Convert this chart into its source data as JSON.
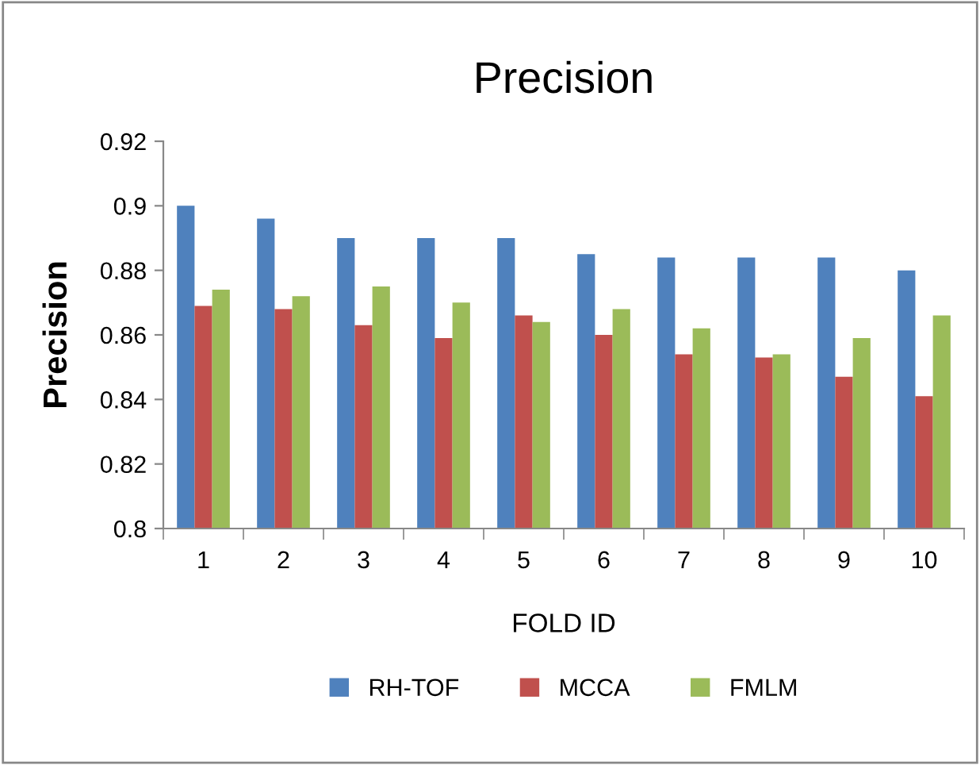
{
  "chart_data": {
    "type": "bar",
    "title": "Precision",
    "xlabel": "FOLD ID",
    "ylabel": "Precision",
    "categories": [
      "1",
      "2",
      "3",
      "4",
      "5",
      "6",
      "7",
      "8",
      "9",
      "10"
    ],
    "series": [
      {
        "name": "RH-TOF",
        "color": "#4f81bd",
        "values": [
          0.9,
          0.896,
          0.89,
          0.89,
          0.89,
          0.885,
          0.884,
          0.884,
          0.884,
          0.88
        ]
      },
      {
        "name": "MCCA",
        "color": "#c0504d",
        "values": [
          0.869,
          0.868,
          0.863,
          0.859,
          0.866,
          0.86,
          0.854,
          0.853,
          0.847,
          0.841
        ]
      },
      {
        "name": "FMLM",
        "color": "#9bbb59",
        "values": [
          0.874,
          0.872,
          0.875,
          0.87,
          0.864,
          0.868,
          0.862,
          0.854,
          0.859,
          0.866
        ]
      }
    ],
    "ylim": [
      0.8,
      0.92
    ],
    "yticks": [
      0.8,
      0.82,
      0.84,
      0.86,
      0.88,
      0.9,
      0.92
    ],
    "grid": false,
    "legend": "bottom"
  }
}
